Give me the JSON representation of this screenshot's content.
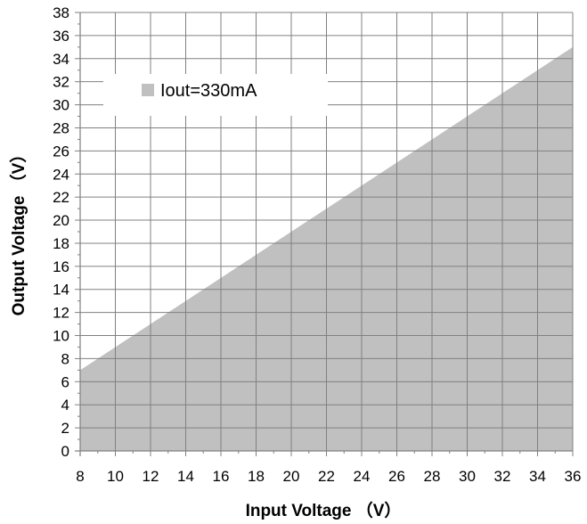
{
  "chart_data": {
    "type": "area",
    "title": "",
    "xlabel": "Input Voltage （V）",
    "ylabel": "Output Voltage （V）",
    "xlim": [
      8,
      36
    ],
    "ylim": [
      0,
      38
    ],
    "x_ticks": [
      8,
      10,
      12,
      14,
      16,
      18,
      20,
      22,
      24,
      26,
      28,
      30,
      32,
      34,
      36
    ],
    "y_ticks": [
      0,
      2,
      4,
      6,
      8,
      10,
      12,
      14,
      16,
      18,
      20,
      22,
      24,
      26,
      28,
      30,
      32,
      34,
      36,
      38
    ],
    "grid": true,
    "x_minor_step": 1,
    "y_minor_step": 1,
    "legend_position": "top-left",
    "series": [
      {
        "name": "Iout=330mA",
        "color": "#c0c0c0",
        "x": [
          8,
          36
        ],
        "y": [
          7,
          35
        ]
      }
    ]
  },
  "colors": {
    "fill": "#c0c0c0",
    "grid": "#808080",
    "axis": "#808080",
    "background": "#ffffff"
  }
}
